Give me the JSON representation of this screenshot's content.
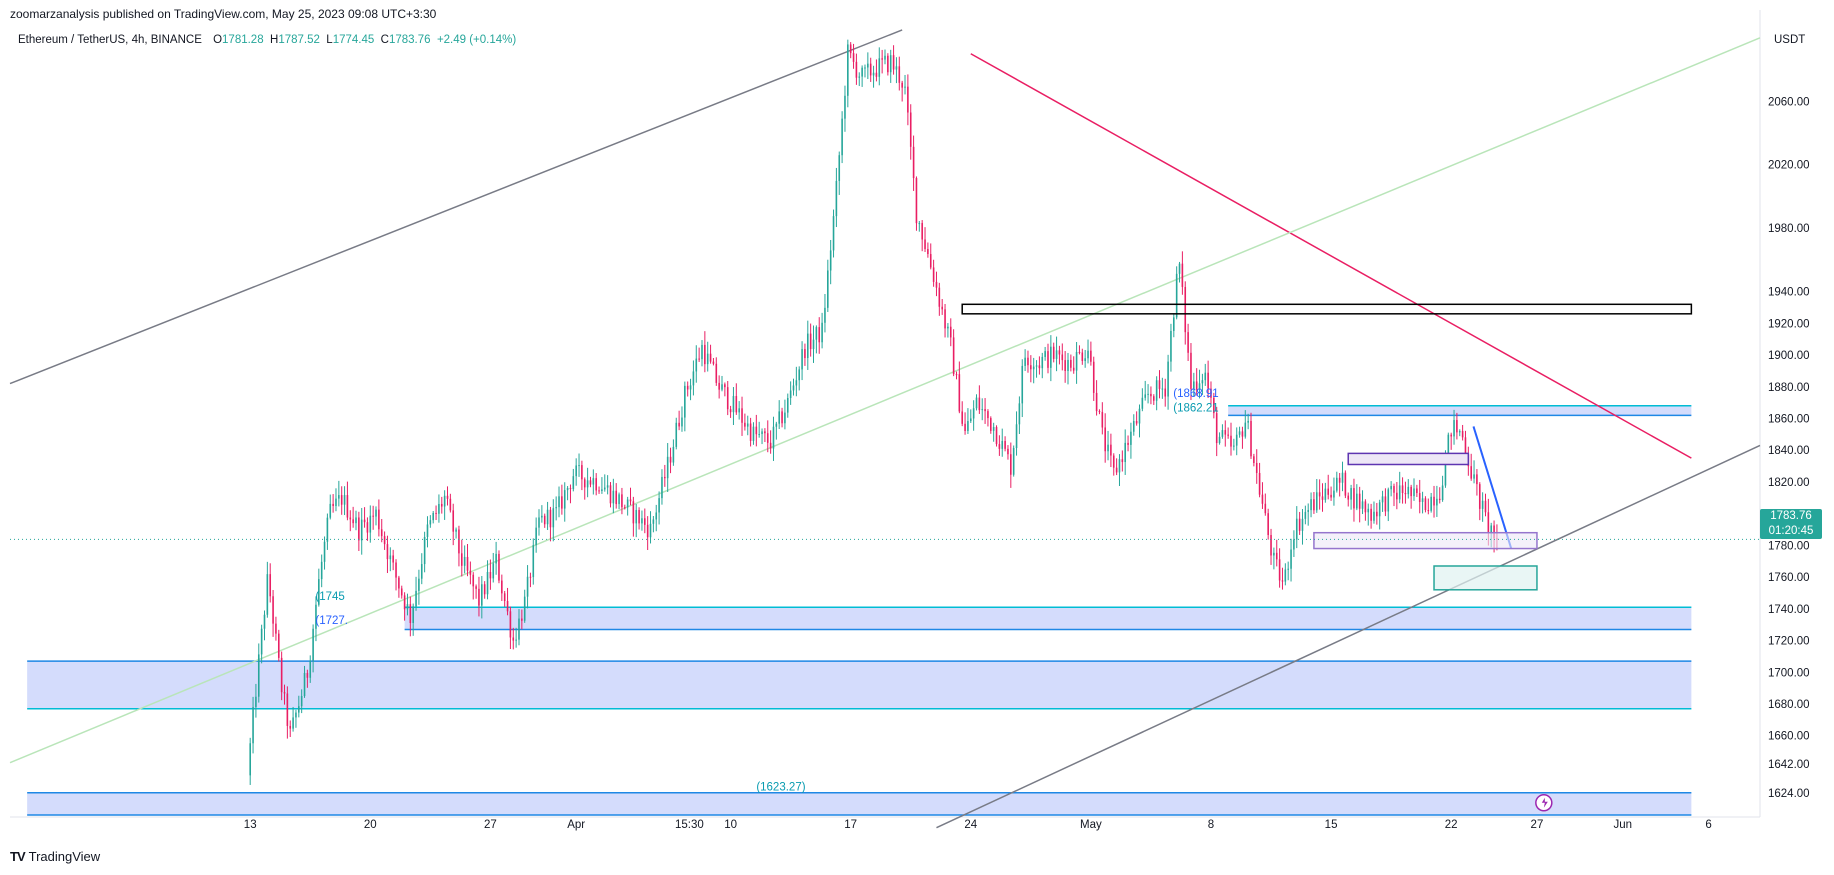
{
  "header": {
    "published": "zoomarzanalysis published on TradingView.com, May 25, 2023 09:08 UTC+3:30",
    "symbol": "Ethereum / TetherUS, 4h, BINANCE",
    "open_label": "O",
    "open": "1781.28",
    "high_label": "H",
    "high": "1787.52",
    "low_label": "L",
    "low": "1774.45",
    "close_label": "C",
    "close": "1783.76",
    "change": "+2.49 (+0.14%)",
    "currency": "USDT"
  },
  "last_price": {
    "price": "1783.76",
    "countdown": "01:20:45"
  },
  "footer": {
    "logo": "TV",
    "brand": "TradingView"
  },
  "colors": {
    "up": "#26a69a",
    "down": "#e91e63",
    "zone_fill": "#cfd8fc",
    "zone_line": "#1e88e5",
    "zone_line_teal": "#00bcd4",
    "trend_red": "#e91e63",
    "trend_grey": "#787b86",
    "trend_green": "#b9e5b9"
  },
  "chart_data": {
    "type": "candlestick",
    "timeframe": "4h",
    "ylim": [
      1610,
      2110
    ],
    "y_ticks": [
      1624,
      1642,
      1660,
      1680,
      1700,
      1720,
      1740,
      1760,
      1780,
      1800,
      1820,
      1840,
      1860,
      1880,
      1900,
      1920,
      1940,
      1980,
      2020,
      2060
    ],
    "x_ticks": [
      "13",
      "20",
      "27",
      "Apr",
      "15:30",
      "10",
      "17",
      "24",
      "May",
      "8",
      "15",
      "22",
      "27",
      "Jun",
      "6"
    ],
    "x_tick_days": [
      13,
      20,
      27,
      32,
      38.6,
      41,
      48,
      55,
      62,
      69,
      76,
      83,
      88,
      93,
      98
    ],
    "day_axis_origin": "2023-03-01 = day 1",
    "last_day": 86,
    "anchors": [
      {
        "day": 13.0,
        "price": 1635
      },
      {
        "day": 13.6,
        "price": 1700
      },
      {
        "day": 14.2,
        "price": 1760
      },
      {
        "day": 15.0,
        "price": 1690
      },
      {
        "day": 15.5,
        "price": 1660
      },
      {
        "day": 16.5,
        "price": 1700
      },
      {
        "day": 17.2,
        "price": 1760
      },
      {
        "day": 17.8,
        "price": 1800
      },
      {
        "day": 18.5,
        "price": 1810
      },
      {
        "day": 19.5,
        "price": 1790
      },
      {
        "day": 20.5,
        "price": 1800
      },
      {
        "day": 21.5,
        "price": 1765
      },
      {
        "day": 22.5,
        "price": 1735
      },
      {
        "day": 23.5,
        "price": 1790
      },
      {
        "day": 24.5,
        "price": 1810
      },
      {
        "day": 25.5,
        "price": 1770
      },
      {
        "day": 26.5,
        "price": 1745
      },
      {
        "day": 27.5,
        "price": 1770
      },
      {
        "day": 28.5,
        "price": 1720
      },
      {
        "day": 29.2,
        "price": 1745
      },
      {
        "day": 30.0,
        "price": 1795
      },
      {
        "day": 31.0,
        "price": 1800
      },
      {
        "day": 32.0,
        "price": 1825
      },
      {
        "day": 33.5,
        "price": 1820
      },
      {
        "day": 34.5,
        "price": 1810
      },
      {
        "day": 35.5,
        "price": 1800
      },
      {
        "day": 36.5,
        "price": 1790
      },
      {
        "day": 37.5,
        "price": 1830
      },
      {
        "day": 38.5,
        "price": 1875
      },
      {
        "day": 39.5,
        "price": 1905
      },
      {
        "day": 40.5,
        "price": 1880
      },
      {
        "day": 41.5,
        "price": 1865
      },
      {
        "day": 42.5,
        "price": 1850
      },
      {
        "day": 43.5,
        "price": 1845
      },
      {
        "day": 44.5,
        "price": 1870
      },
      {
        "day": 45.5,
        "price": 1905
      },
      {
        "day": 46.5,
        "price": 1915
      },
      {
        "day": 47.3,
        "price": 2000
      },
      {
        "day": 48.0,
        "price": 2090
      },
      {
        "day": 48.8,
        "price": 2075
      },
      {
        "day": 49.5,
        "price": 2080
      },
      {
        "day": 50.5,
        "price": 2085
      },
      {
        "day": 51.3,
        "price": 2070
      },
      {
        "day": 52.0,
        "price": 1990
      },
      {
        "day": 53.0,
        "price": 1950
      },
      {
        "day": 54.0,
        "price": 1905
      },
      {
        "day": 54.8,
        "price": 1850
      },
      {
        "day": 55.5,
        "price": 1870
      },
      {
        "day": 56.5,
        "price": 1855
      },
      {
        "day": 57.5,
        "price": 1830
      },
      {
        "day": 58.3,
        "price": 1900
      },
      {
        "day": 59.0,
        "price": 1895
      },
      {
        "day": 60.0,
        "price": 1900
      },
      {
        "day": 61.0,
        "price": 1895
      },
      {
        "day": 62.0,
        "price": 1905
      },
      {
        "day": 62.8,
        "price": 1850
      },
      {
        "day": 63.5,
        "price": 1825
      },
      {
        "day": 64.5,
        "price": 1850
      },
      {
        "day": 65.5,
        "price": 1875
      },
      {
        "day": 66.5,
        "price": 1880
      },
      {
        "day": 67.3,
        "price": 1960
      },
      {
        "day": 68.0,
        "price": 1880
      },
      {
        "day": 68.8,
        "price": 1890
      },
      {
        "day": 69.5,
        "price": 1850
      },
      {
        "day": 70.5,
        "price": 1840
      },
      {
        "day": 71.2,
        "price": 1860
      },
      {
        "day": 72.0,
        "price": 1815
      },
      {
        "day": 72.8,
        "price": 1770
      },
      {
        "day": 73.4,
        "price": 1755
      },
      {
        "day": 74.0,
        "price": 1790
      },
      {
        "day": 75.0,
        "price": 1805
      },
      {
        "day": 76.0,
        "price": 1815
      },
      {
        "day": 76.8,
        "price": 1820
      },
      {
        "day": 77.5,
        "price": 1810
      },
      {
        "day": 78.5,
        "price": 1800
      },
      {
        "day": 79.5,
        "price": 1810
      },
      {
        "day": 80.5,
        "price": 1815
      },
      {
        "day": 81.5,
        "price": 1805
      },
      {
        "day": 82.5,
        "price": 1815
      },
      {
        "day": 83.2,
        "price": 1855
      },
      {
        "day": 83.8,
        "price": 1850
      },
      {
        "day": 84.5,
        "price": 1820
      },
      {
        "day": 85.2,
        "price": 1795
      },
      {
        "day": 85.8,
        "price": 1783.76
      }
    ],
    "zones": [
      {
        "from_day": 0,
        "to_day": 97,
        "top": 1707,
        "bottom": 1677
      },
      {
        "from_day": 22,
        "to_day": 97,
        "top": 1741,
        "bottom": 1727
      },
      {
        "from_day": 70,
        "to_day": 97,
        "top": 1868,
        "bottom": 1862
      },
      {
        "from_day": 0,
        "to_day": 97,
        "top": 1624,
        "bottom": 1610
      }
    ],
    "boxes": [
      {
        "from_day": 54.5,
        "to_day": 97,
        "top": 1932,
        "bottom": 1926,
        "style": "black"
      },
      {
        "from_day": 77,
        "to_day": 84,
        "top": 1838,
        "bottom": 1831,
        "style": "purple"
      },
      {
        "from_day": 75,
        "to_day": 88,
        "top": 1788,
        "bottom": 1778,
        "style": "purple-light"
      },
      {
        "from_day": 82,
        "to_day": 88,
        "top": 1767,
        "bottom": 1752,
        "style": "green"
      }
    ],
    "trendlines": [
      {
        "p1": [
          -1,
          1882
        ],
        "p2": [
          51,
          2105
        ],
        "color": "grey"
      },
      {
        "p1": [
          55,
          2090
        ],
        "p2": [
          97,
          1835
        ],
        "color": "red"
      },
      {
        "p1": [
          -1,
          1643
        ],
        "p2": [
          101,
          2100
        ],
        "color": "green"
      },
      {
        "p1": [
          53,
          1602
        ],
        "p2": [
          101,
          1843
        ],
        "color": "grey"
      },
      {
        "p1": [
          84.3,
          1855
        ],
        "p2": [
          86.5,
          1778
        ],
        "color": "blue"
      }
    ],
    "annotations": [
      {
        "text": "(1745",
        "day": 16.8,
        "price": 1748
      },
      {
        "text": "(1727.",
        "day": 16.8,
        "price": 1733
      },
      {
        "text": "(1868.91",
        "day": 66.8,
        "price": 1876
      },
      {
        "text": "(1862.21",
        "day": 66.8,
        "price": 1867
      },
      {
        "text": "(1623.27)",
        "day": 42.5,
        "price": 1628
      }
    ]
  }
}
